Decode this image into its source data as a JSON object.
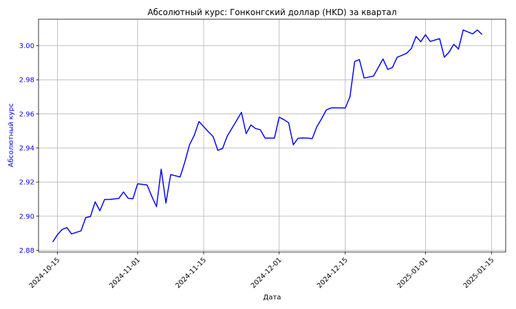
{
  "colors": {
    "line": "#0000ff",
    "grid": "#b0b0b0",
    "axis": "#000000",
    "ylabel": "#0000ff",
    "background": "#ffffff"
  },
  "chart_data": {
    "type": "line",
    "title": "Абсолютный курс: Гонконгский доллар (HKD) за квартал",
    "xlabel": "Дата",
    "ylabel": "Абсолютный курс",
    "grid": true,
    "legend": "none",
    "xlim": [
      "2024-10-11",
      "2025-01-18"
    ],
    "ylim": [
      2.879,
      3.0155
    ],
    "x_ticks": [
      "2024-10-15",
      "2024-11-01",
      "2024-11-15",
      "2024-12-01",
      "2024-12-15",
      "2025-01-01",
      "2025-01-15"
    ],
    "y_ticks": [
      {
        "value": 2.88,
        "label": "2.88"
      },
      {
        "value": 2.9,
        "label": "2.90"
      },
      {
        "value": 2.92,
        "label": "2.92"
      },
      {
        "value": 2.94,
        "label": "2.94"
      },
      {
        "value": 2.96,
        "label": "2.96"
      },
      {
        "value": 2.98,
        "label": "2.98"
      },
      {
        "value": 3.0,
        "label": "3.00"
      }
    ],
    "series": [
      {
        "x": [
          "2024-10-14",
          "2024-10-15",
          "2024-10-16",
          "2024-10-17",
          "2024-10-18",
          "2024-10-20",
          "2024-10-21",
          "2024-10-22",
          "2024-10-23",
          "2024-10-24",
          "2024-10-25",
          "2024-10-26",
          "2024-10-28",
          "2024-10-29",
          "2024-10-30",
          "2024-10-31",
          "2024-11-01",
          "2024-11-03",
          "2024-11-04",
          "2024-11-05",
          "2024-11-06",
          "2024-11-07",
          "2024-11-08",
          "2024-11-10",
          "2024-11-11",
          "2024-11-12",
          "2024-11-13",
          "2024-11-14",
          "2024-11-16",
          "2024-11-17",
          "2024-11-18",
          "2024-11-19",
          "2024-11-20",
          "2024-11-21",
          "2024-11-23",
          "2024-11-24",
          "2024-11-25",
          "2024-11-26",
          "2024-11-27",
          "2024-11-28",
          "2024-11-30",
          "2024-12-01",
          "2024-12-02",
          "2024-12-03",
          "2024-12-04",
          "2024-12-05",
          "2024-12-06",
          "2024-12-07",
          "2024-12-08",
          "2024-12-09",
          "2024-12-10",
          "2024-12-11",
          "2024-12-12",
          "2024-12-14",
          "2024-12-15",
          "2024-12-16",
          "2024-12-17",
          "2024-12-18",
          "2024-12-19",
          "2024-12-21",
          "2024-12-23",
          "2024-12-24",
          "2024-12-25",
          "2024-12-26",
          "2024-12-28",
          "2024-12-29",
          "2024-12-30",
          "2024-12-31",
          "2025-01-01",
          "2025-01-02",
          "2025-01-04",
          "2025-01-05",
          "2025-01-06",
          "2025-01-07",
          "2025-01-08",
          "2025-01-09",
          "2025-01-11",
          "2025-01-12",
          "2025-01-13"
        ],
        "values": [
          2.8849,
          2.8891,
          2.8922,
          2.8933,
          2.8896,
          2.8914,
          2.8992,
          2.8998,
          2.9084,
          2.9032,
          2.9098,
          2.9098,
          2.9104,
          2.9142,
          2.9105,
          2.9102,
          2.919,
          2.9183,
          2.9117,
          2.9056,
          2.9276,
          2.9077,
          2.9244,
          2.923,
          2.9317,
          2.9419,
          2.9474,
          2.9555,
          2.9495,
          2.9467,
          2.9386,
          2.9397,
          2.947,
          2.9516,
          2.9609,
          2.9484,
          2.9535,
          2.9514,
          2.9507,
          2.9458,
          2.9458,
          2.9581,
          2.9566,
          2.9548,
          2.9419,
          2.9457,
          2.9459,
          2.9458,
          2.9455,
          2.9526,
          2.9572,
          2.9623,
          2.9635,
          2.9635,
          2.9634,
          2.97,
          2.9907,
          2.9918,
          2.981,
          2.9822,
          2.9922,
          2.9861,
          2.9872,
          2.9932,
          2.9955,
          2.9983,
          3.0054,
          3.0023,
          3.0064,
          3.0025,
          3.0041,
          2.9932,
          2.9962,
          3.0008,
          2.998,
          3.0092,
          3.0069,
          3.0092,
          3.0065
        ]
      }
    ]
  }
}
